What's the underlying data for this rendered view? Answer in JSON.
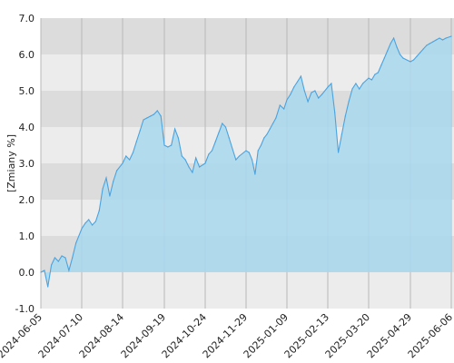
{
  "chart_data": {
    "type": "area",
    "title": "",
    "xlabel": "",
    "ylabel": "[Zmiany %]",
    "ylim": [
      -1.0,
      7.0
    ],
    "yticks": [
      "-1.0",
      "0.0",
      "1.0",
      "2.0",
      "3.0",
      "4.0",
      "5.0",
      "6.0",
      "7.0"
    ],
    "xticks": [
      "2024-06-05",
      "2024-07-10",
      "2024-08-14",
      "2024-09-19",
      "2024-10-24",
      "2024-11-29",
      "2025-01-09",
      "2025-02-13",
      "2025-03-20",
      "2025-04-29",
      "2025-06-06"
    ],
    "grid": true,
    "colors": {
      "fill": "#a9d8ee",
      "line": "#4aa3df",
      "band_dark": "#dcdcdc",
      "band_light": "#ececec",
      "grid": "#b8b8b8"
    },
    "series": [
      {
        "x": [
          "2024-06-05",
          "2024-06-08",
          "2024-06-11",
          "2024-06-14",
          "2024-06-17",
          "2024-06-20",
          "2024-06-23",
          "2024-06-26",
          "2024-06-29",
          "2024-07-02",
          "2024-07-05",
          "2024-07-10",
          "2024-07-13",
          "2024-07-16",
          "2024-07-19",
          "2024-07-22",
          "2024-07-25",
          "2024-07-28",
          "2024-07-31",
          "2024-08-03",
          "2024-08-06",
          "2024-08-09",
          "2024-08-14",
          "2024-08-17",
          "2024-08-20",
          "2024-08-23",
          "2024-08-26",
          "2024-08-29",
          "2024-09-01",
          "2024-09-04",
          "2024-09-07",
          "2024-09-10",
          "2024-09-13",
          "2024-09-16",
          "2024-09-19",
          "2024-09-22",
          "2024-09-25",
          "2024-09-28",
          "2024-10-01",
          "2024-10-04",
          "2024-10-07",
          "2024-10-10",
          "2024-10-13",
          "2024-10-16",
          "2024-10-19",
          "2024-10-24",
          "2024-10-27",
          "2024-10-30",
          "2024-11-02",
          "2024-11-05",
          "2024-11-08",
          "2024-11-11",
          "2024-11-14",
          "2024-11-17",
          "2024-11-20",
          "2024-11-23",
          "2024-11-29",
          "2024-12-02",
          "2024-12-05",
          "2024-12-08",
          "2024-12-11",
          "2024-12-14",
          "2024-12-17",
          "2024-12-20",
          "2024-12-23",
          "2024-12-26",
          "2024-12-29",
          "2025-01-02",
          "2025-01-06",
          "2025-01-09",
          "2025-01-12",
          "2025-01-15",
          "2025-01-18",
          "2025-01-21",
          "2025-01-24",
          "2025-01-27",
          "2025-01-30",
          "2025-02-02",
          "2025-02-05",
          "2025-02-08",
          "2025-02-13",
          "2025-02-16",
          "2025-02-19",
          "2025-02-22",
          "2025-02-25",
          "2025-02-28",
          "2025-03-03",
          "2025-03-06",
          "2025-03-09",
          "2025-03-12",
          "2025-03-15",
          "2025-03-20",
          "2025-03-23",
          "2025-03-26",
          "2025-03-29",
          "2025-04-01",
          "2025-04-04",
          "2025-04-07",
          "2025-04-10",
          "2025-04-13",
          "2025-04-16",
          "2025-04-19",
          "2025-04-22",
          "2025-04-29",
          "2025-05-02",
          "2025-05-05",
          "2025-05-08",
          "2025-05-11",
          "2025-05-14",
          "2025-05-17",
          "2025-05-20",
          "2025-05-23",
          "2025-05-26",
          "2025-05-29",
          "2025-06-01",
          "2025-06-06"
        ],
        "values": [
          0.0,
          0.05,
          -0.4,
          0.2,
          0.4,
          0.3,
          0.45,
          0.4,
          0.05,
          0.4,
          0.8,
          1.2,
          1.35,
          1.45,
          1.3,
          1.4,
          1.7,
          2.3,
          2.6,
          2.1,
          2.5,
          2.8,
          3.0,
          3.2,
          3.1,
          3.3,
          3.6,
          3.9,
          4.2,
          4.25,
          4.3,
          4.35,
          4.45,
          4.3,
          3.5,
          3.45,
          3.5,
          3.95,
          3.7,
          3.2,
          3.1,
          2.9,
          2.75,
          3.15,
          2.9,
          3.0,
          3.25,
          3.35,
          3.6,
          3.85,
          4.1,
          4.0,
          3.7,
          3.4,
          3.1,
          3.2,
          3.35,
          3.3,
          3.1,
          2.7,
          3.35,
          3.5,
          3.7,
          3.8,
          3.95,
          4.1,
          4.25,
          4.6,
          4.5,
          4.75,
          4.9,
          5.1,
          5.25,
          5.4,
          5.0,
          4.7,
          4.95,
          5.0,
          4.8,
          4.9,
          5.1,
          5.2,
          4.4,
          3.3,
          3.8,
          4.3,
          4.7,
          5.05,
          5.2,
          5.05,
          5.2,
          5.35,
          5.3,
          5.45,
          5.5,
          5.7,
          5.9,
          6.1,
          6.3,
          6.45,
          6.2,
          6.0,
          5.9,
          5.8,
          5.85,
          5.95,
          6.05,
          6.15,
          6.25,
          6.3,
          6.35,
          6.4,
          6.45,
          6.4,
          6.45,
          6.5
        ]
      }
    ]
  }
}
